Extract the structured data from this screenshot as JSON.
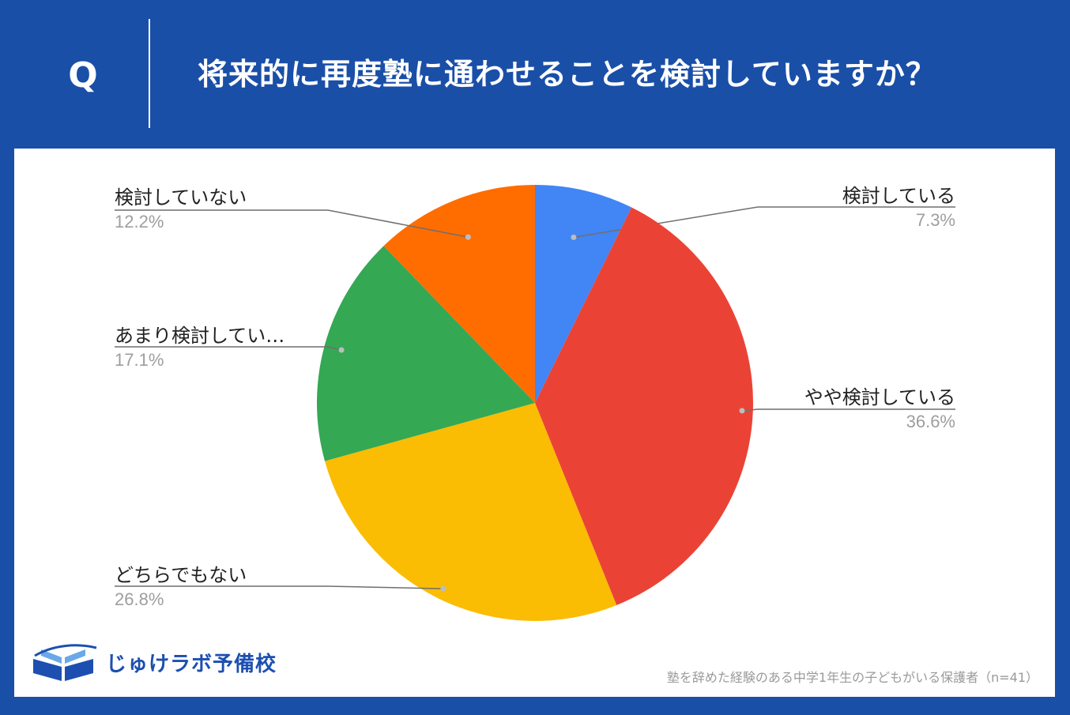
{
  "header": {
    "q_mark": "Q",
    "question": "将来的に再度塾に通わせることを検討していますか？"
  },
  "colors": {
    "background": "#1a4fa8",
    "panel": "#ffffff",
    "slice_colors": [
      "#4285f4",
      "#ea4335",
      "#fbbc04",
      "#34a853",
      "#ff6d01"
    ]
  },
  "chart_data": {
    "type": "pie",
    "slices": [
      {
        "label": "検討している",
        "value": 7.3,
        "display": "7.3%",
        "color": "#4285f4"
      },
      {
        "label": "やや検討している",
        "value": 36.6,
        "display": "36.6%",
        "color": "#ea4335"
      },
      {
        "label": "どちらでもない",
        "value": 26.8,
        "display": "26.8%",
        "color": "#fbbc04"
      },
      {
        "label": "あまり検討してい…",
        "value": 17.1,
        "display": "17.1%",
        "color": "#34a853"
      },
      {
        "label": "検討していない",
        "value": 12.2,
        "display": "12.2%",
        "color": "#ff6d01"
      }
    ],
    "start_angle": "top",
    "direction": "clockwise",
    "legend": "none"
  },
  "logo": {
    "text": "じゅけラボ予備校",
    "icon": "open-book-icon"
  },
  "footnote": "塾を辞めた経験のある中学1年生の子どもがいる保護者（n=41）"
}
